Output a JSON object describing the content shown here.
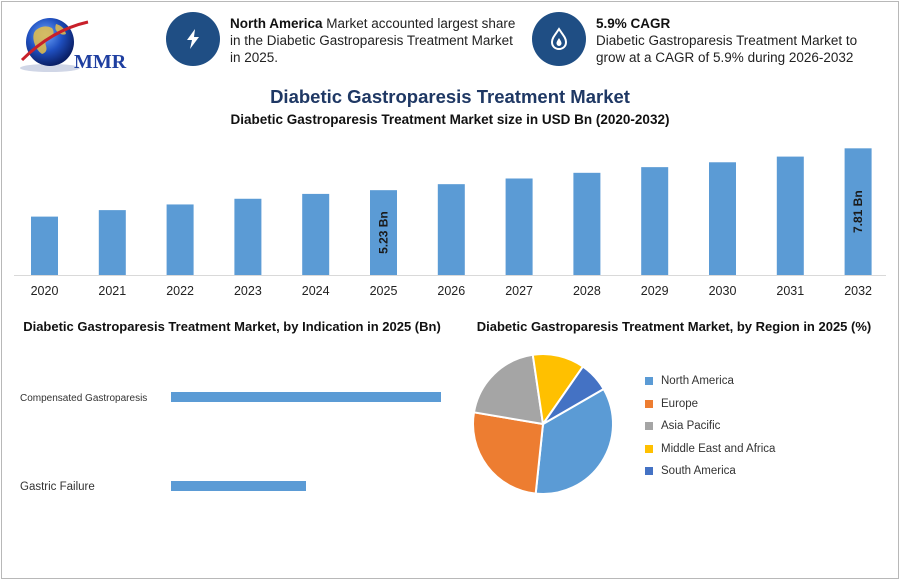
{
  "logo": {
    "text": "MMR"
  },
  "highlights": [
    {
      "icon": "lightning-icon",
      "bold": "North America",
      "text": " Market accounted largest share in the Diabetic Gastroparesis Treatment Market in 2025."
    },
    {
      "icon": "flame-drop-icon",
      "bold": "5.9% CAGR",
      "text": "Diabetic Gastroparesis Treatment Market to grow at a CAGR of 5.9% during 2026-2032"
    }
  ],
  "main_title": "Diabetic Gastroparesis Treatment Market",
  "colors": {
    "bar": "#5b9bd5",
    "header_circle": "#1f4e84",
    "title": "#1f3864",
    "pie": [
      "#5b9bd5",
      "#ed7d31",
      "#a5a5a5",
      "#ffc000",
      "#4472c4"
    ]
  },
  "chart_data": [
    {
      "type": "bar",
      "title": "Diabetic Gastroparesis Treatment Market size in USD Bn (2020-2032)",
      "categories": [
        "2020",
        "2021",
        "2022",
        "2023",
        "2024",
        "2025",
        "2026",
        "2027",
        "2028",
        "2029",
        "2030",
        "2031",
        "2032"
      ],
      "values": [
        3.6,
        4.0,
        4.35,
        4.7,
        5.0,
        5.23,
        5.6,
        5.95,
        6.3,
        6.65,
        6.95,
        7.3,
        7.81
      ],
      "data_labels": [
        {
          "category": "2025",
          "text": "5.23 Bn"
        },
        {
          "category": "2032",
          "text": "7.81 Bn"
        }
      ],
      "ylim": [
        0,
        8.2
      ]
    },
    {
      "type": "bar",
      "orientation": "horizontal",
      "title": "Diabetic Gastroparesis Treatment Market, by Indication in 2025 (Bn)",
      "categories": [
        "Compensated Gastroparesis",
        "Gastric Failure"
      ],
      "values": [
        3.6,
        1.8
      ],
      "xlim": [
        0,
        3.6
      ]
    },
    {
      "type": "pie",
      "title": "Diabetic Gastroparesis Treatment Market, by Region in 2025 (%)",
      "labels": [
        "North America",
        "Europe",
        "Asia Pacific",
        "Middle East and Africa",
        "South America"
      ],
      "values": [
        35,
        26,
        20,
        12,
        7
      ],
      "legend": "right"
    }
  ]
}
